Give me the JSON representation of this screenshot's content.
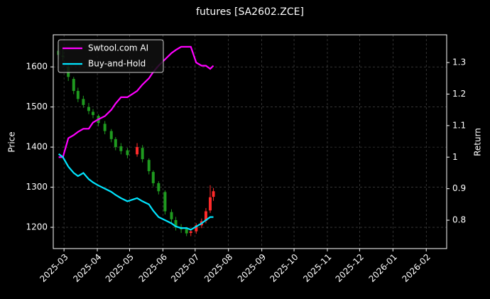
{
  "chart_data": {
    "type": "candlestick",
    "title": "futures [SA2602.ZCE]",
    "y_label": "Price",
    "y2_label": "Return",
    "x": [
      "2025-02-24",
      "2025-02-28",
      "2025-03-05",
      "2025-03-10",
      "2025-03-14",
      "2025-03-19",
      "2025-03-24",
      "2025-03-28",
      "2025-04-02",
      "2025-04-08",
      "2025-04-14",
      "2025-04-18",
      "2025-04-23",
      "2025-04-29",
      "2025-05-08",
      "2025-05-13",
      "2025-05-19",
      "2025-05-23",
      "2025-05-28",
      "2025-06-03",
      "2025-06-09",
      "2025-06-13",
      "2025-06-18",
      "2025-06-23",
      "2025-06-27",
      "2025-07-02",
      "2025-07-07",
      "2025-07-11",
      "2025-07-15",
      "2025-07-18"
    ],
    "open": [
      1640,
      1628,
      1600,
      1570,
      1540,
      1520,
      1500,
      1488,
      1478,
      1458,
      1440,
      1420,
      1402,
      1392,
      1382,
      1398,
      1368,
      1338,
      1310,
      1288,
      1238,
      1218,
      1200,
      1196,
      1186,
      1190,
      1205,
      1216,
      1242,
      1276
    ],
    "high": [
      1655,
      1645,
      1605,
      1575,
      1548,
      1528,
      1510,
      1495,
      1482,
      1465,
      1445,
      1425,
      1410,
      1398,
      1410,
      1405,
      1372,
      1342,
      1315,
      1292,
      1245,
      1226,
      1208,
      1200,
      1196,
      1210,
      1222,
      1248,
      1305,
      1298
    ],
    "low": [
      1620,
      1615,
      1565,
      1532,
      1512,
      1498,
      1482,
      1472,
      1452,
      1432,
      1412,
      1392,
      1382,
      1372,
      1376,
      1362,
      1332,
      1302,
      1282,
      1232,
      1212,
      1192,
      1186,
      1178,
      1178,
      1184,
      1198,
      1210,
      1236,
      1266
    ],
    "close": [
      1630,
      1625,
      1575,
      1540,
      1520,
      1505,
      1490,
      1480,
      1460,
      1440,
      1420,
      1400,
      1390,
      1380,
      1400,
      1370,
      1340,
      1310,
      1290,
      1240,
      1220,
      1200,
      1195,
      1185,
      1190,
      1205,
      1215,
      1240,
      1275,
      1290
    ],
    "up_color": "#ff2a2a",
    "down_color": "#1f9a1f",
    "series": [
      {
        "name": "Swtool.com AI",
        "color": "#ff00ff",
        "axis": "y2",
        "values": [
          1.0,
          1.0,
          1.06,
          1.07,
          1.08,
          1.09,
          1.09,
          1.11,
          1.12,
          1.13,
          1.15,
          1.17,
          1.19,
          1.19,
          1.21,
          1.23,
          1.25,
          1.27,
          1.29,
          1.31,
          1.33,
          1.34,
          1.35,
          1.35,
          1.35,
          1.3,
          1.29,
          1.29,
          1.28,
          1.29
        ]
      },
      {
        "name": "Buy-and-Hold",
        "color": "#00e5ff",
        "axis": "y2",
        "values": [
          1.01,
          1.0,
          0.97,
          0.95,
          0.94,
          0.95,
          0.93,
          0.92,
          0.91,
          0.9,
          0.89,
          0.88,
          0.87,
          0.86,
          0.87,
          0.86,
          0.85,
          0.83,
          0.81,
          0.8,
          0.79,
          0.78,
          0.775,
          0.775,
          0.77,
          0.78,
          0.79,
          0.8,
          0.81,
          0.81
        ]
      }
    ],
    "xlim": [
      "2025-02-19",
      "2026-02-20"
    ],
    "xticks": [
      "2025-03",
      "2025-04",
      "2025-05",
      "2025-06",
      "2025-07",
      "2025-08",
      "2025-09",
      "2025-10",
      "2025-11",
      "2025-12",
      "2026-01",
      "2026-02"
    ],
    "ylim": [
      1147,
      1680
    ],
    "yticks": [
      1200,
      1300,
      1400,
      1500,
      1600
    ],
    "y2lim": [
      0.71,
      1.388
    ],
    "y2ticks": [
      0.8,
      0.9,
      1.0,
      1.1,
      1.2,
      1.3
    ],
    "grid": true,
    "legend": "upper-left"
  }
}
